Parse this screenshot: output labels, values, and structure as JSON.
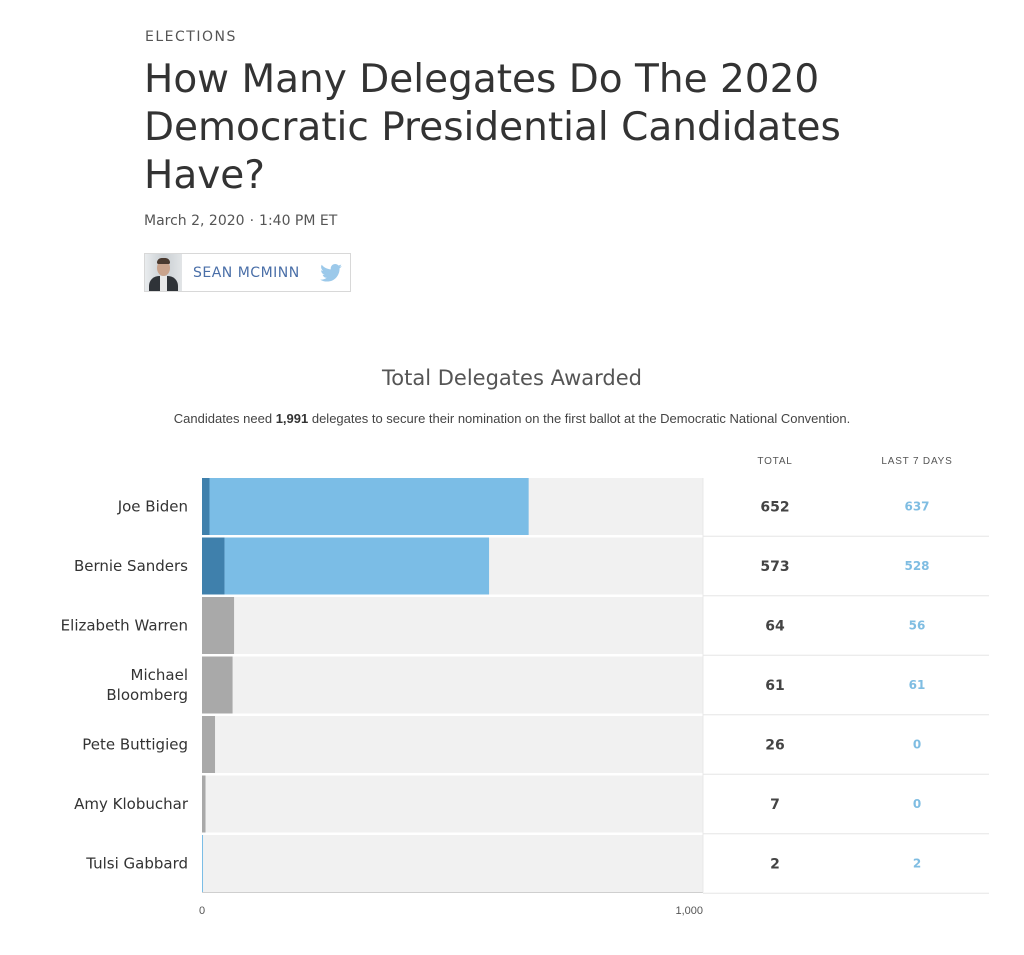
{
  "header": {
    "kicker": "ELECTIONS",
    "headline": "How Many Delegates Do The 2020 Democratic Presidential Candidates Have?",
    "date": "March 2, 2020",
    "separator": "·",
    "time": "1:40 PM ET"
  },
  "byline": {
    "author": "SEAN MCMINN",
    "icons": [
      "author-avatar",
      "twitter-icon"
    ]
  },
  "chart_data": {
    "type": "bar",
    "orientation": "horizontal",
    "title": "Total Delegates Awarded",
    "subtitle_pre": "Candidates need ",
    "subtitle_bold": "1,991",
    "subtitle_post": " delegates to secure their nomination on the first ballot at the Democratic National Convention.",
    "columns": {
      "total": "TOTAL",
      "last7": "LAST 7 DAYS"
    },
    "xlim": [
      0,
      1000
    ],
    "ticks": [
      {
        "value": 0,
        "label": "0"
      },
      {
        "value": 1000,
        "label": "1,000"
      }
    ],
    "candidates": [
      {
        "name": "Joe Biden",
        "total": 652,
        "total_label": "652",
        "last7": 637,
        "last7_label": "637",
        "highlight": true
      },
      {
        "name": "Bernie Sanders",
        "total": 573,
        "total_label": "573",
        "last7": 528,
        "last7_label": "528",
        "highlight": true
      },
      {
        "name": "Elizabeth Warren",
        "total": 64,
        "total_label": "64",
        "last7": 56,
        "last7_label": "56",
        "highlight": false
      },
      {
        "name": "Michael Bloomberg",
        "lines": [
          "Michael",
          "Bloomberg"
        ],
        "total": 61,
        "total_label": "61",
        "last7": 61,
        "last7_label": "61",
        "highlight": false
      },
      {
        "name": "Pete Buttigieg",
        "total": 26,
        "total_label": "26",
        "last7": 0,
        "last7_label": "0",
        "highlight": false
      },
      {
        "name": "Amy Klobuchar",
        "total": 7,
        "total_label": "7",
        "last7": 0,
        "last7_label": "0",
        "highlight": false
      },
      {
        "name": "Tulsi Gabbard",
        "total": 2,
        "total_label": "2",
        "last7": 2,
        "last7_label": "2",
        "highlight": false
      }
    ],
    "colors": {
      "track": "#f1f1f1",
      "recent": "#7bbde6",
      "earlier_highlight": "#3f80ac",
      "other": "#a9a9a9",
      "last7_text": "#7fbde2"
    }
  }
}
